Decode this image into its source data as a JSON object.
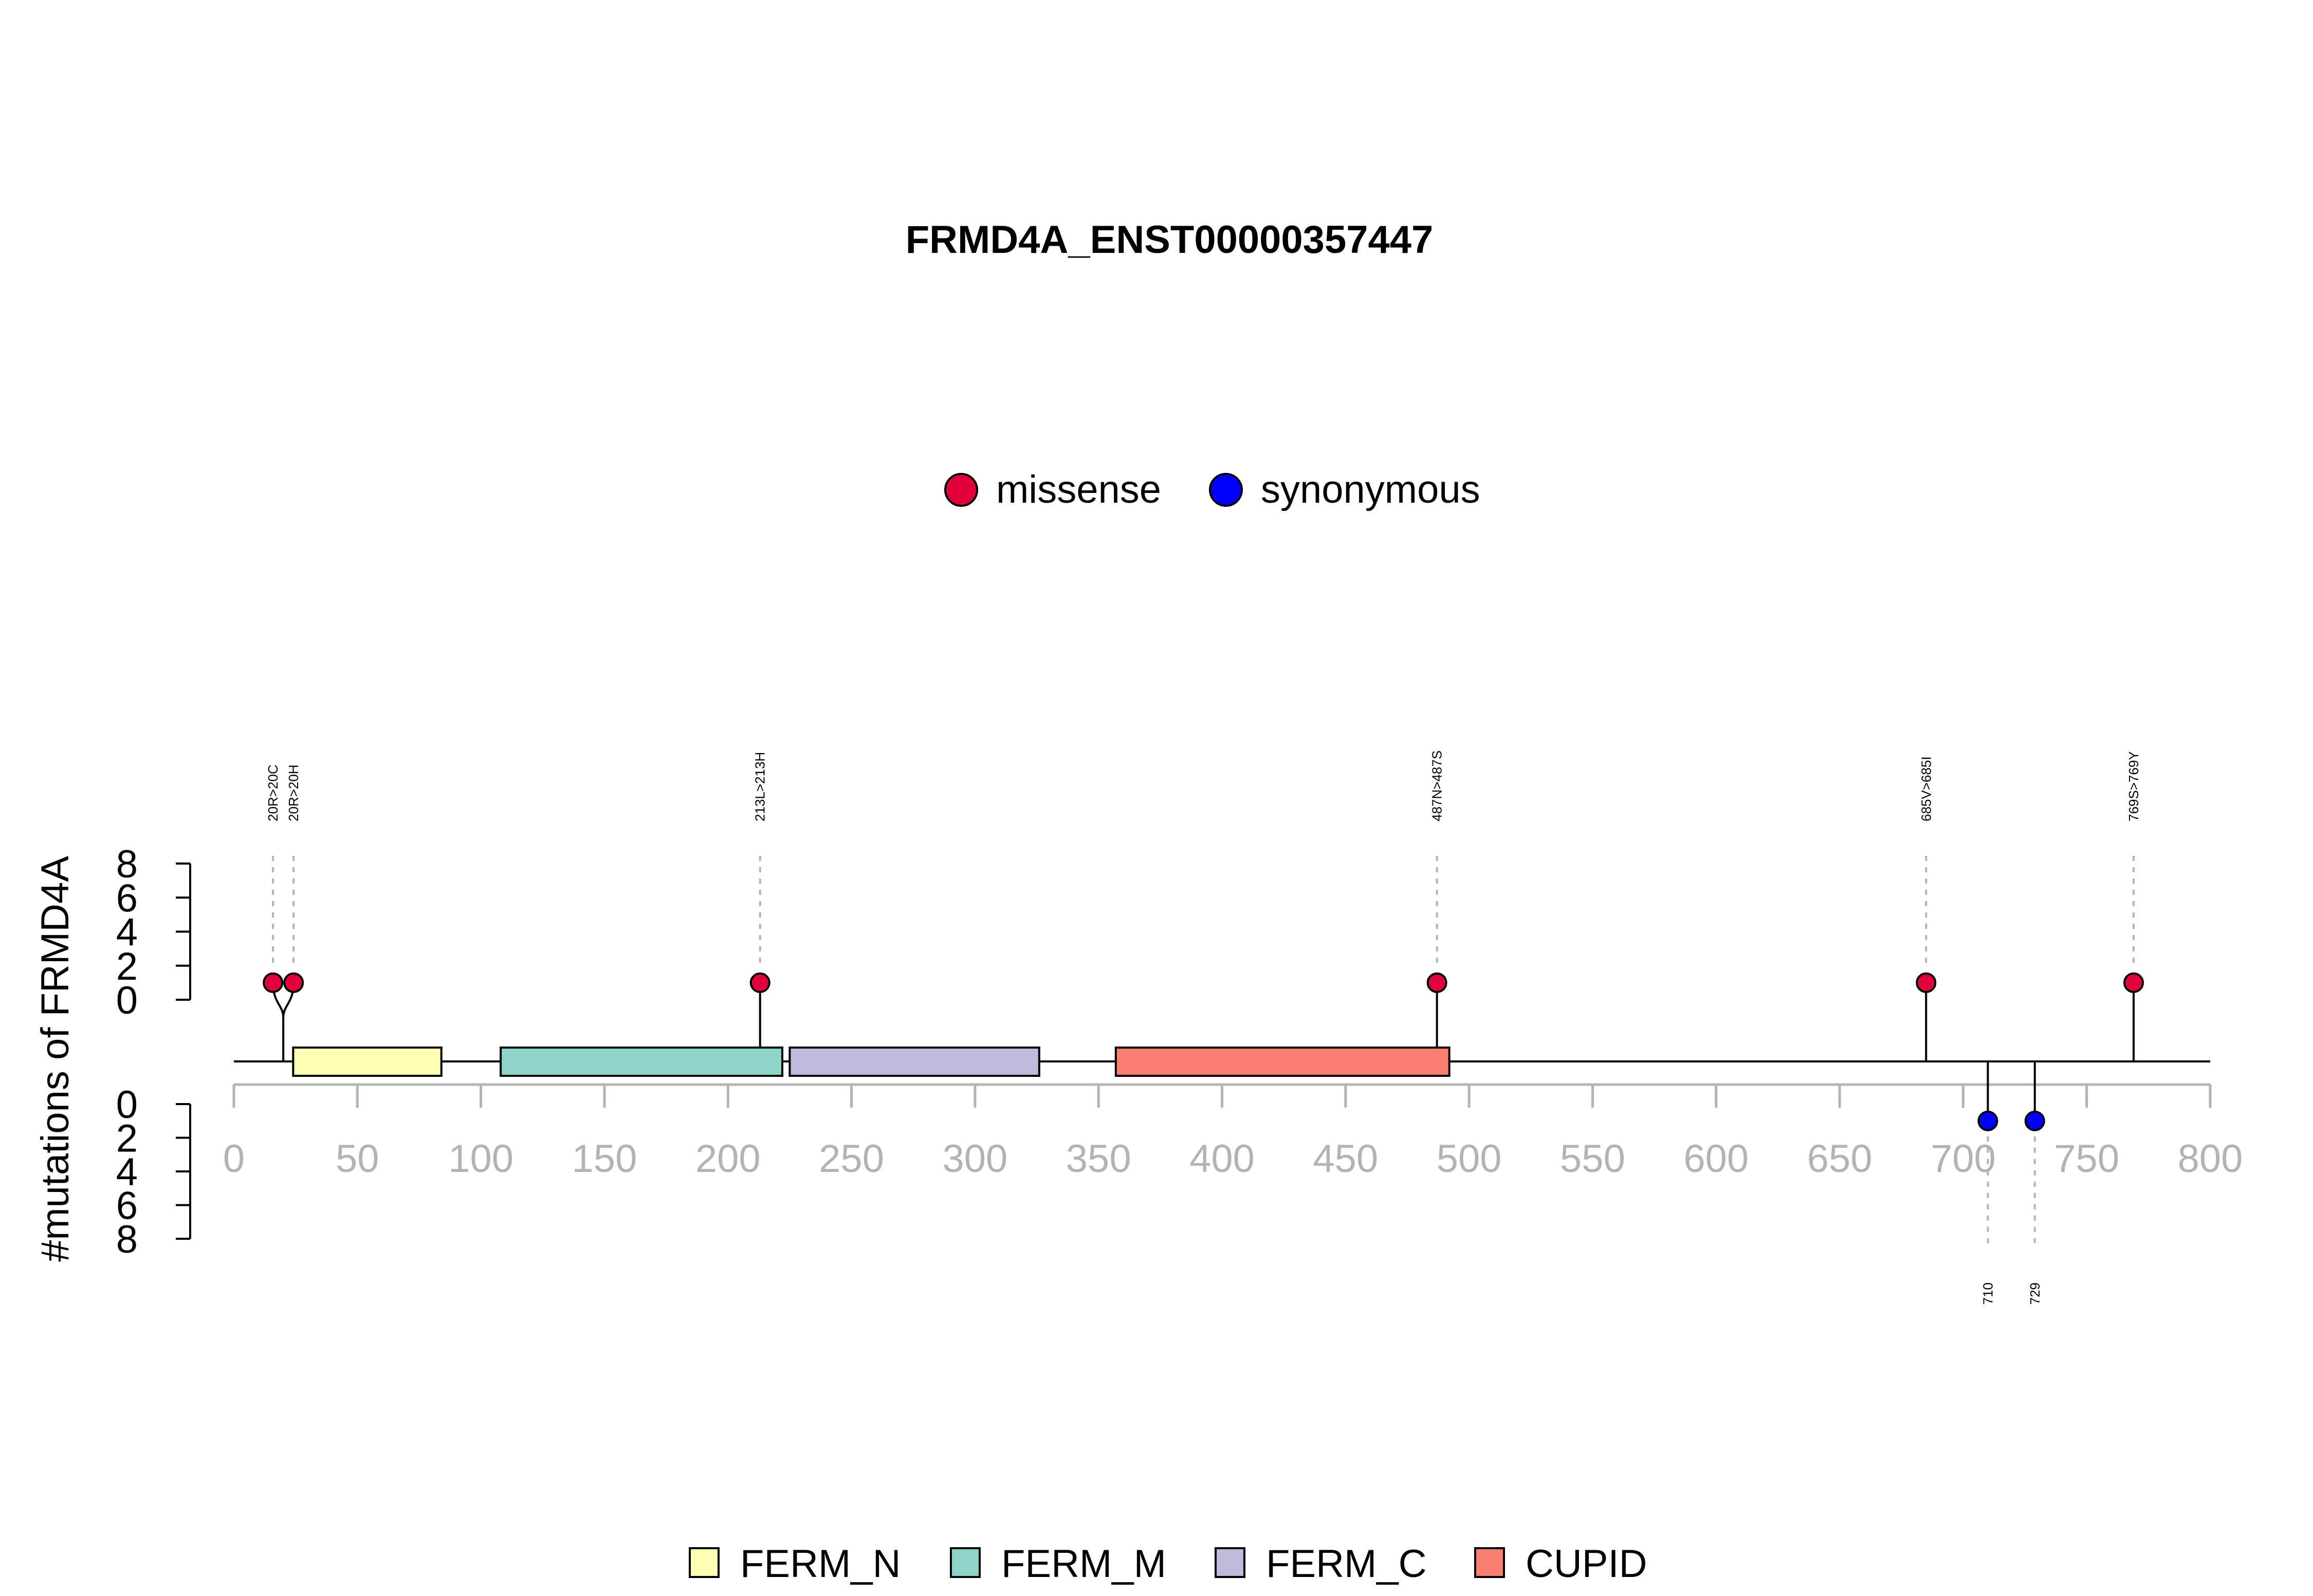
{
  "chart_data": {
    "type": "lollipop",
    "title": "FRMD4A_ENST00000357447",
    "ylabel": "#mutations of FRMD4A",
    "xlim": [
      0,
      800
    ],
    "x_ticks": [
      "0",
      "50",
      "100",
      "150",
      "200",
      "250",
      "300",
      "350",
      "400",
      "450",
      "500",
      "550",
      "600",
      "650",
      "700",
      "750",
      "800"
    ],
    "ylim_upper": [
      0,
      8
    ],
    "y_ticks_upper": [
      "0",
      "2",
      "4",
      "6",
      "8"
    ],
    "ylim_lower": [
      0,
      8
    ],
    "y_ticks_lower": [
      "0",
      "2",
      "4",
      "6",
      "8"
    ],
    "mutation_legend": [
      {
        "label": "missense",
        "color": "#e0003c"
      },
      {
        "label": "synonymous",
        "color": "#0000ff"
      }
    ],
    "domain_legend": [
      {
        "label": "FERM_N",
        "color": "#ffffb3"
      },
      {
        "label": "FERM_M",
        "color": "#8dd3c7"
      },
      {
        "label": "FERM_C",
        "color": "#bebada"
      },
      {
        "label": "CUPID",
        "color": "#fb8072"
      }
    ],
    "domains": [
      {
        "name": "FERM_N",
        "start": 24,
        "end": 84,
        "color": "#ffffb3"
      },
      {
        "name": "FERM_M",
        "start": 108,
        "end": 222,
        "color": "#8dd3c7"
      },
      {
        "name": "FERM_C",
        "start": 225,
        "end": 326,
        "color": "#bebada"
      },
      {
        "name": "CUPID",
        "start": 357,
        "end": 492,
        "color": "#fb8072"
      }
    ],
    "mutations_upper": [
      {
        "position": 20,
        "label": "20R>20C",
        "count": 1,
        "type": "missense"
      },
      {
        "position": 20,
        "label": "20R>20H",
        "count": 1,
        "type": "missense"
      },
      {
        "position": 213,
        "label": "213L>213H",
        "count": 1,
        "type": "missense"
      },
      {
        "position": 487,
        "label": "487N>487S",
        "count": 1,
        "type": "missense"
      },
      {
        "position": 685,
        "label": "685V>685I",
        "count": 1,
        "type": "missense"
      },
      {
        "position": 769,
        "label": "769S>769Y",
        "count": 1,
        "type": "missense"
      }
    ],
    "mutations_lower": [
      {
        "position": 710,
        "label": "710",
        "count": 1,
        "type": "synonymous"
      },
      {
        "position": 729,
        "label": "729",
        "count": 1,
        "type": "synonymous"
      }
    ]
  }
}
